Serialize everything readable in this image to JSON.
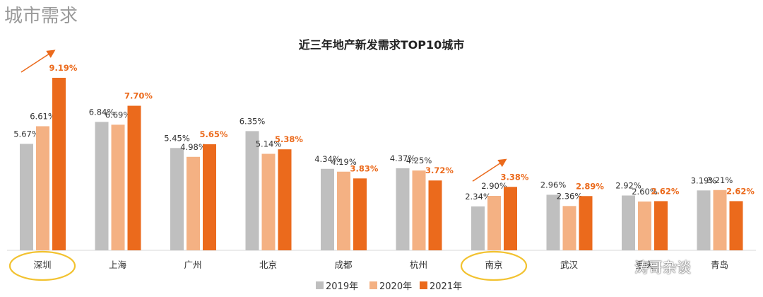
{
  "section_title": "城市需求",
  "watermark": "涛哥杂谈",
  "colors": {
    "s2019": "#bfbfbf",
    "s2020": "#f4b183",
    "s2021": "#eb6a1c",
    "highlight_circle": "#f2c230",
    "arrow": "#eb6a1c"
  },
  "chart_data": {
    "type": "bar",
    "title": "近三年地产新发需求TOP10城市",
    "xlabel": "",
    "ylabel": "",
    "ylim": [
      0,
      9.5
    ],
    "categories": [
      "深圳",
      "上海",
      "广州",
      "北京",
      "成都",
      "杭州",
      "南京",
      "武汉",
      "重庆",
      "青岛"
    ],
    "series": [
      {
        "name": "2019年",
        "values": [
          5.67,
          6.84,
          5.45,
          6.35,
          4.34,
          4.37,
          2.34,
          2.96,
          2.92,
          3.19
        ]
      },
      {
        "name": "2020年",
        "values": [
          6.61,
          6.69,
          4.98,
          5.14,
          4.19,
          4.25,
          2.9,
          2.36,
          2.6,
          3.21
        ]
      },
      {
        "name": "2021年",
        "values": [
          9.19,
          7.7,
          5.65,
          5.38,
          3.83,
          3.72,
          3.38,
          2.89,
          2.62,
          2.62
        ]
      }
    ],
    "value_labels": [
      [
        "5.67%",
        "6.84%",
        "5.45%",
        "6.35%",
        "4.34%",
        "4.37%",
        "2.34%",
        "2.96%",
        "2.92%",
        "3.19%"
      ],
      [
        "6.61%",
        "6.69%",
        "4.98%",
        "5.14%",
        "4.19%",
        "4.25%",
        "2.90%",
        "2.36%",
        "2.60%",
        "3.21%"
      ],
      [
        "9.19%",
        "7.70%",
        "5.65%",
        "5.38%",
        "3.83%",
        "3.72%",
        "3.38%",
        "2.89%",
        "2.62%",
        "2.62%"
      ]
    ],
    "legend_position": "bottom",
    "highlighted_categories": [
      "深圳",
      "南京"
    ],
    "trend_arrows_at": [
      "深圳",
      "南京"
    ]
  }
}
